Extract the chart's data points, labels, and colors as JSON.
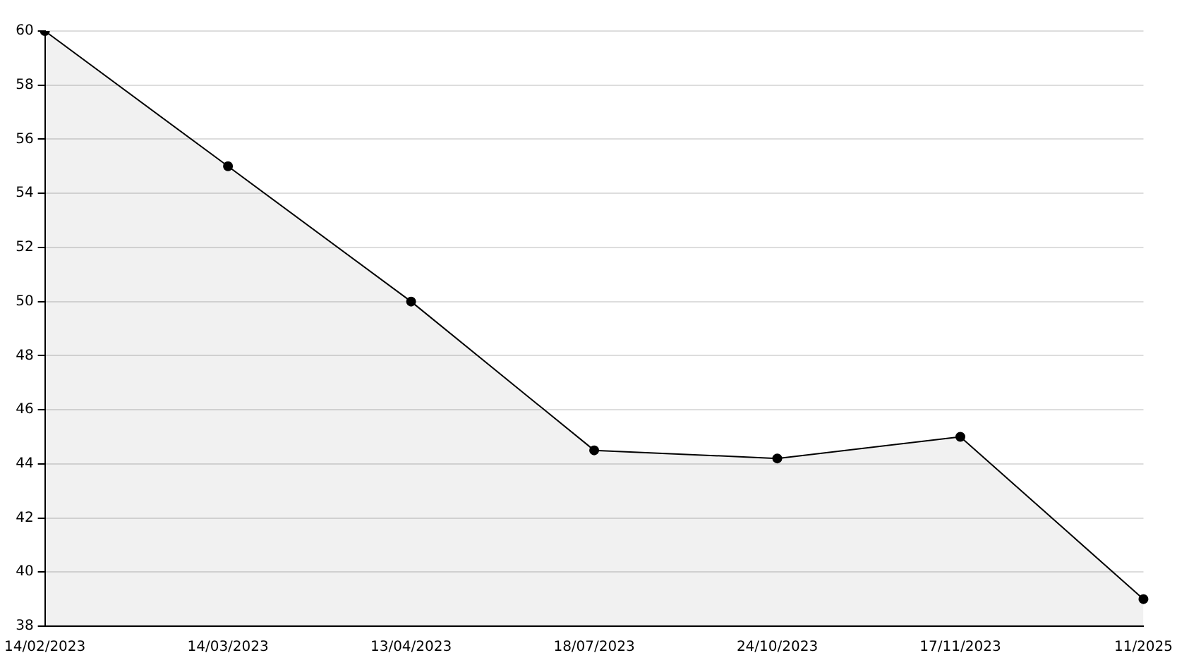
{
  "chart_data": {
    "type": "area",
    "categories": [
      "14/02/2023",
      "14/03/2023",
      "13/04/2023",
      "18/07/2023",
      "24/10/2023",
      "17/11/2023",
      "11/2025"
    ],
    "series": [
      {
        "color": "#000000",
        "values": [
          60,
          55,
          50,
          44.5,
          44.2,
          45,
          39
        ]
      }
    ],
    "ylim": [
      38,
      60
    ],
    "yticks": [
      38,
      40,
      42,
      44,
      46,
      48,
      50,
      52,
      54,
      56,
      58,
      60
    ],
    "grid": "y",
    "marker": "circle",
    "line_style": "solid",
    "legend": false
  }
}
